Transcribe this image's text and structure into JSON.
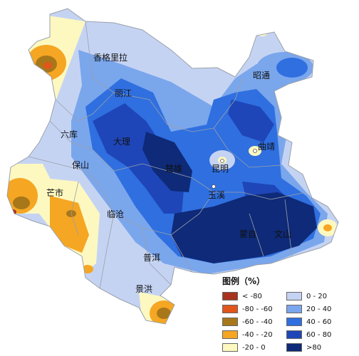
{
  "cities": [
    {
      "id": "xianggelila",
      "name": "香格里拉"
    },
    {
      "id": "lijiang",
      "name": "丽江"
    },
    {
      "id": "zhaotong",
      "name": "昭通"
    },
    {
      "id": "liuku",
      "name": "六库"
    },
    {
      "id": "dali",
      "name": "大理"
    },
    {
      "id": "qujing",
      "name": "曲靖"
    },
    {
      "id": "baoshan",
      "name": "保山"
    },
    {
      "id": "chuxiong",
      "name": "楚雄"
    },
    {
      "id": "kunming",
      "name": "昆明"
    },
    {
      "id": "mangshi",
      "name": "芒市"
    },
    {
      "id": "yuxi",
      "name": "玉溪"
    },
    {
      "id": "lincang",
      "name": "临沧"
    },
    {
      "id": "mengzi",
      "name": "蒙自"
    },
    {
      "id": "wenshan",
      "name": "文山"
    },
    {
      "id": "puer",
      "name": "普洱"
    },
    {
      "id": "jinghong",
      "name": "景洪"
    }
  ],
  "legend": {
    "title": "图例（%）",
    "items": [
      {
        "label": "< -80",
        "color": "#a8321e"
      },
      {
        "label": "-80 - -60",
        "color": "#e0561b"
      },
      {
        "label": "-60 - -40",
        "color": "#a8771a"
      },
      {
        "label": "-40 - -20",
        "color": "#f5a623"
      },
      {
        "label": "-20 - 0",
        "color": "#fdf8c0"
      },
      {
        "label": "0 - 20",
        "color": "#c5d3f3"
      },
      {
        "label": "20 - 40",
        "color": "#7aa6ec"
      },
      {
        "label": "40 - 60",
        "color": "#2f6fe0"
      },
      {
        "label": "60 - 80",
        "color": "#1e46b8"
      },
      {
        "label": ">80",
        "color": "#0e2a78"
      }
    ]
  }
}
